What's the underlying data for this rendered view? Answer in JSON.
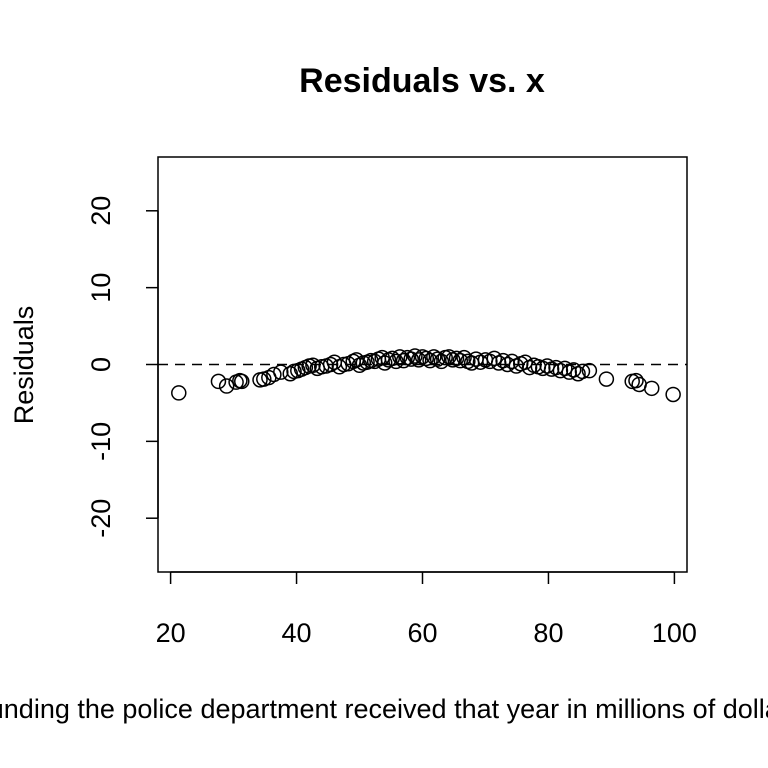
{
  "chart_data": {
    "type": "scatter",
    "title": "Residuals vs. x",
    "xlabel": "x, Funding the police department received that year in millions of dollars",
    "ylabel": "Residuals",
    "xlim": [
      18,
      102
    ],
    "ylim": [
      -27,
      27
    ],
    "x_ticks": [
      20,
      40,
      60,
      80,
      100
    ],
    "y_ticks": [
      -20,
      -10,
      0,
      10,
      20
    ],
    "reference_line": {
      "y": 0,
      "style": "dashed"
    },
    "grid": false,
    "legend": "none",
    "marker": "open-circle",
    "points": [
      {
        "x": 21.3,
        "y": -3.7
      },
      {
        "x": 27.6,
        "y": -2.2
      },
      {
        "x": 28.9,
        "y": -2.8
      },
      {
        "x": 30.4,
        "y": -2.3
      },
      {
        "x": 31.0,
        "y": -2.1
      },
      {
        "x": 31.3,
        "y": -2.2
      },
      {
        "x": 34.2,
        "y": -2.0
      },
      {
        "x": 34.8,
        "y": -1.9
      },
      {
        "x": 35.6,
        "y": -1.7
      },
      {
        "x": 36.4,
        "y": -1.3
      },
      {
        "x": 37.5,
        "y": -1.0
      },
      {
        "x": 39.0,
        "y": -1.2
      },
      {
        "x": 39.6,
        "y": -0.9
      },
      {
        "x": 40.2,
        "y": -0.8
      },
      {
        "x": 40.8,
        "y": -0.6
      },
      {
        "x": 41.4,
        "y": -0.4
      },
      {
        "x": 42.0,
        "y": -0.2
      },
      {
        "x": 42.6,
        "y": -0.1
      },
      {
        "x": 43.3,
        "y": -0.5
      },
      {
        "x": 44.0,
        "y": -0.3
      },
      {
        "x": 44.7,
        "y": -0.2
      },
      {
        "x": 45.4,
        "y": 0.0
      },
      {
        "x": 46.0,
        "y": 0.3
      },
      {
        "x": 46.8,
        "y": -0.3
      },
      {
        "x": 47.5,
        "y": 0.0
      },
      {
        "x": 48.2,
        "y": 0.1
      },
      {
        "x": 49.0,
        "y": 0.4
      },
      {
        "x": 49.5,
        "y": 0.6
      },
      {
        "x": 50.0,
        "y": -0.1
      },
      {
        "x": 50.6,
        "y": 0.2
      },
      {
        "x": 51.2,
        "y": 0.3
      },
      {
        "x": 51.8,
        "y": 0.5
      },
      {
        "x": 52.4,
        "y": 0.4
      },
      {
        "x": 53.0,
        "y": 0.7
      },
      {
        "x": 53.6,
        "y": 0.9
      },
      {
        "x": 54.0,
        "y": 0.2
      },
      {
        "x": 54.6,
        "y": 0.6
      },
      {
        "x": 55.2,
        "y": 0.8
      },
      {
        "x": 55.8,
        "y": 0.4
      },
      {
        "x": 56.4,
        "y": 1.0
      },
      {
        "x": 57.0,
        "y": 0.5
      },
      {
        "x": 57.6,
        "y": 0.9
      },
      {
        "x": 58.2,
        "y": 0.7
      },
      {
        "x": 58.8,
        "y": 1.1
      },
      {
        "x": 59.4,
        "y": 0.6
      },
      {
        "x": 60.0,
        "y": 1.0
      },
      {
        "x": 60.6,
        "y": 0.8
      },
      {
        "x": 61.2,
        "y": 0.5
      },
      {
        "x": 61.8,
        "y": 1.0
      },
      {
        "x": 62.4,
        "y": 0.7
      },
      {
        "x": 63.0,
        "y": 0.4
      },
      {
        "x": 63.6,
        "y": 0.9
      },
      {
        "x": 64.2,
        "y": 1.0
      },
      {
        "x": 64.8,
        "y": 0.6
      },
      {
        "x": 65.4,
        "y": 0.8
      },
      {
        "x": 66.0,
        "y": 0.5
      },
      {
        "x": 66.6,
        "y": 0.9
      },
      {
        "x": 67.2,
        "y": 0.4
      },
      {
        "x": 67.8,
        "y": 0.2
      },
      {
        "x": 68.5,
        "y": 0.7
      },
      {
        "x": 69.2,
        "y": 0.3
      },
      {
        "x": 70.0,
        "y": 0.6
      },
      {
        "x": 70.7,
        "y": 0.4
      },
      {
        "x": 71.4,
        "y": 0.8
      },
      {
        "x": 72.1,
        "y": 0.2
      },
      {
        "x": 72.8,
        "y": 0.5
      },
      {
        "x": 73.5,
        "y": 0.0
      },
      {
        "x": 74.2,
        "y": 0.4
      },
      {
        "x": 74.9,
        "y": -0.2
      },
      {
        "x": 75.6,
        "y": 0.1
      },
      {
        "x": 76.3,
        "y": 0.3
      },
      {
        "x": 77.0,
        "y": -0.4
      },
      {
        "x": 77.7,
        "y": -0.1
      },
      {
        "x": 78.4,
        "y": -0.3
      },
      {
        "x": 79.1,
        "y": -0.5
      },
      {
        "x": 79.8,
        "y": -0.2
      },
      {
        "x": 80.5,
        "y": -0.6
      },
      {
        "x": 81.2,
        "y": -0.4
      },
      {
        "x": 81.9,
        "y": -0.8
      },
      {
        "x": 82.6,
        "y": -0.5
      },
      {
        "x": 83.3,
        "y": -1.0
      },
      {
        "x": 84.0,
        "y": -0.7
      },
      {
        "x": 84.7,
        "y": -1.2
      },
      {
        "x": 85.4,
        "y": -0.9
      },
      {
        "x": 86.5,
        "y": -0.8
      },
      {
        "x": 89.2,
        "y": -1.9
      },
      {
        "x": 93.3,
        "y": -2.2
      },
      {
        "x": 93.9,
        "y": -2.1
      },
      {
        "x": 94.4,
        "y": -2.6
      },
      {
        "x": 96.4,
        "y": -3.1
      },
      {
        "x": 99.8,
        "y": -3.9
      }
    ]
  }
}
